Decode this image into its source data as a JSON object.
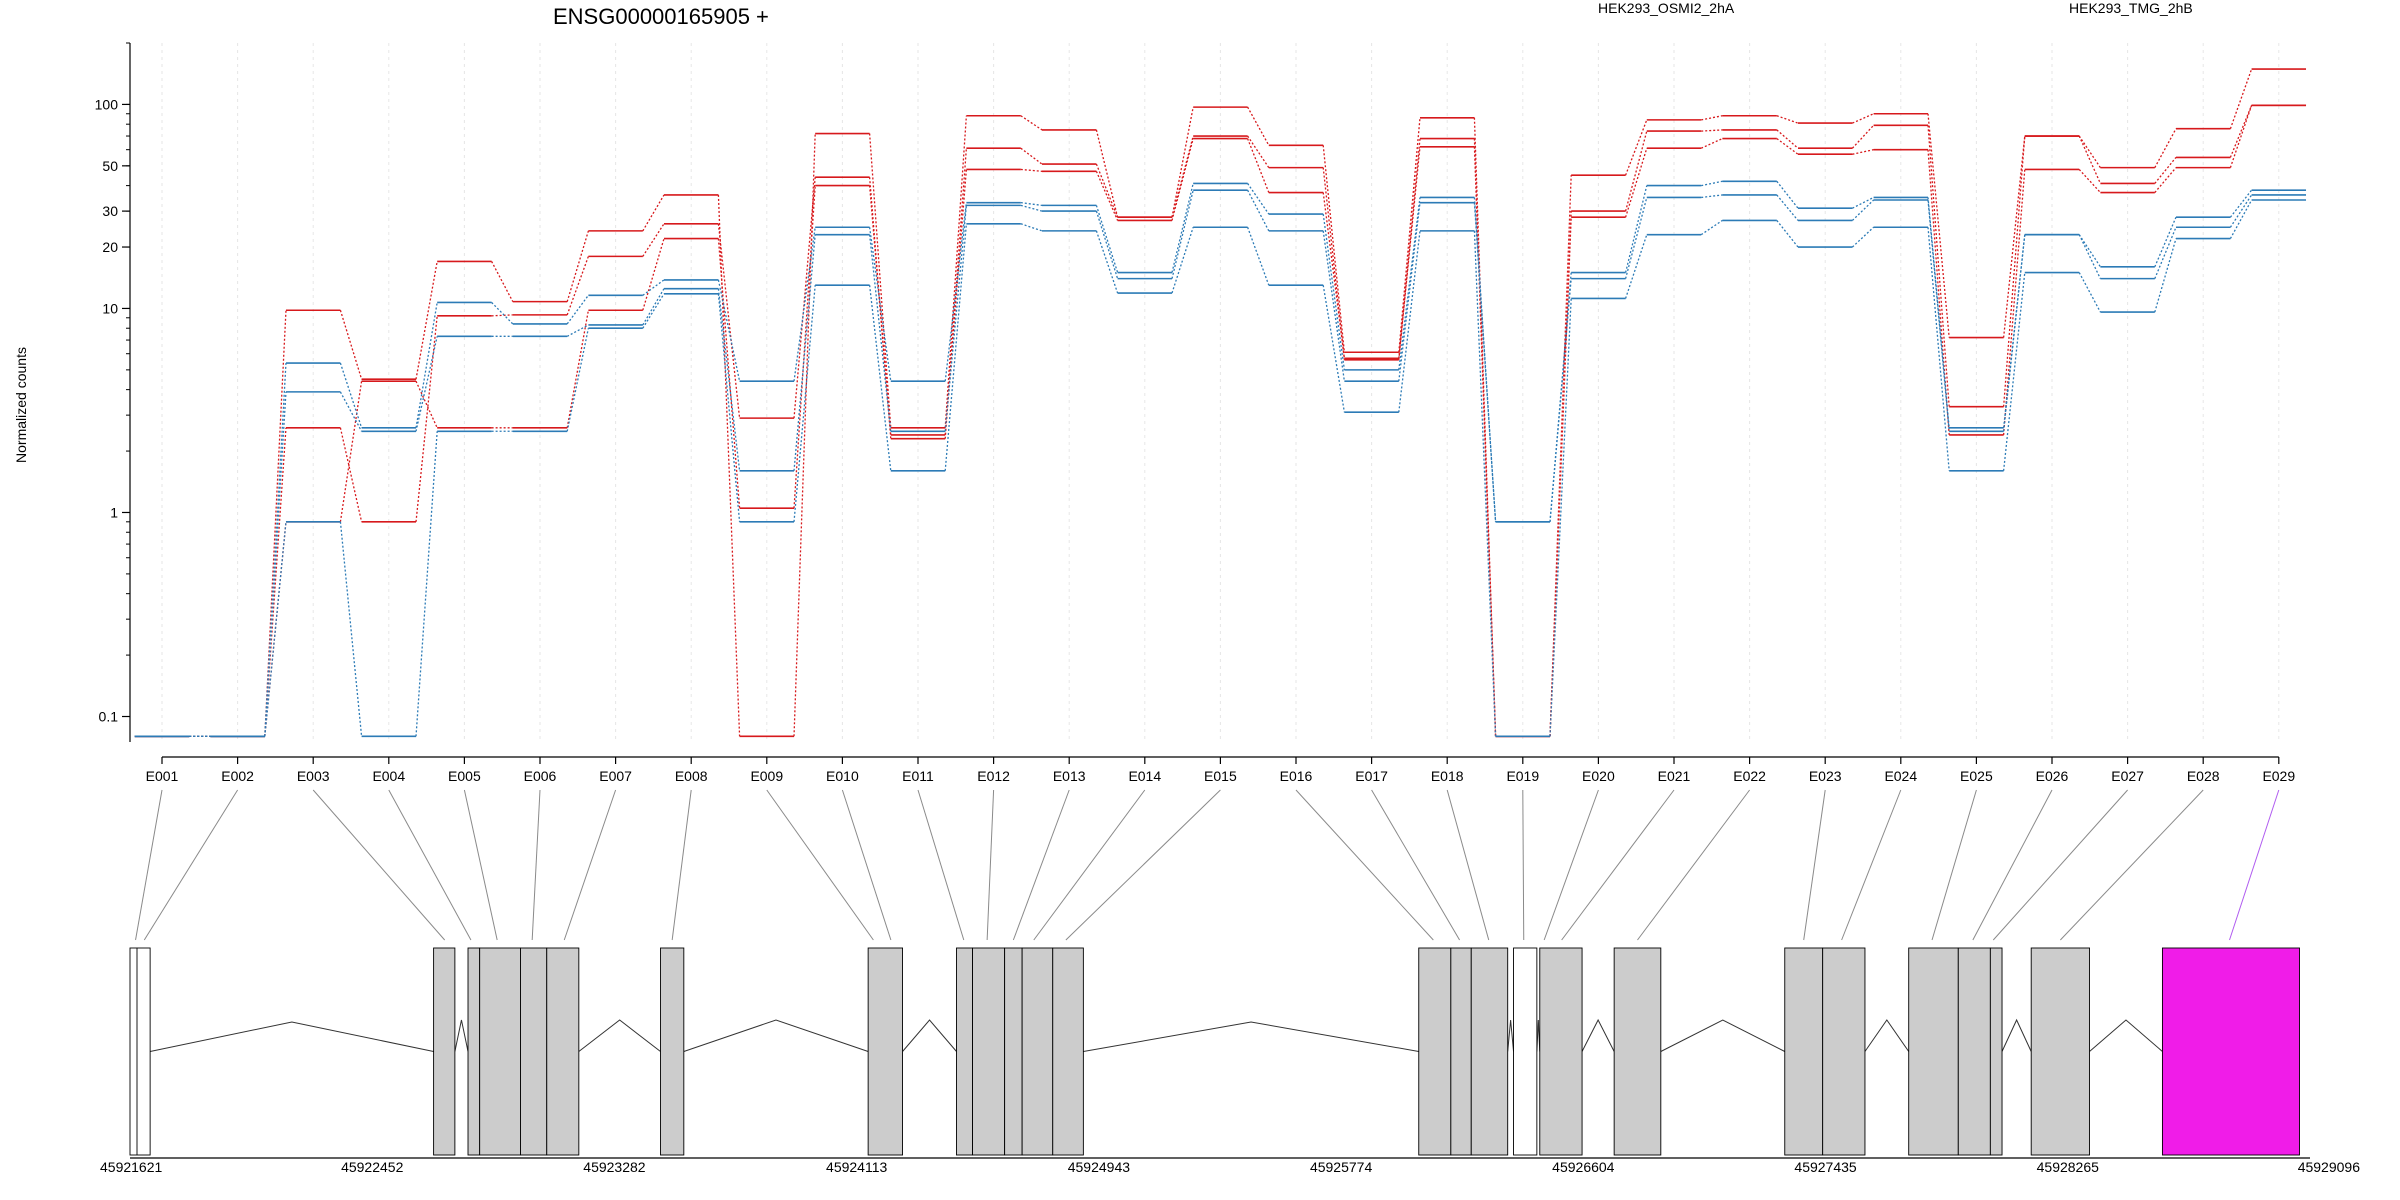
{
  "chart_data": {
    "type": "line",
    "title": "ENSG00000165905 +",
    "ylabel": "Normalized counts",
    "xlabel": "",
    "yscale": "log",
    "ylim": [
      0.075,
      200
    ],
    "y_ticks": [
      0.1,
      1,
      10,
      20,
      30,
      50,
      100
    ],
    "y_tick_labels": [
      "0.1",
      "1",
      "10",
      "20",
      "30",
      "50",
      "100"
    ],
    "grid": "vertical-dashed",
    "categories": [
      "E001",
      "E002",
      "E003",
      "E004",
      "E005",
      "E006",
      "E007",
      "E008",
      "E009",
      "E010",
      "E011",
      "E012",
      "E013",
      "E014",
      "E015",
      "E016",
      "E017",
      "E018",
      "E019",
      "E020",
      "E021",
      "E022",
      "E023",
      "E024",
      "E025",
      "E026",
      "E027",
      "E028",
      "E029"
    ],
    "legend_items": [
      {
        "label": "HEK293_OSMI2_2hA",
        "color": "#d7191c"
      },
      {
        "label": "HEK293_TMG_2hB",
        "color": "#2c7bb6"
      }
    ],
    "series": [
      {
        "group": "HEK293_OSMI2_2hA",
        "color": "#d7191c",
        "values": [
          0.08,
          0.08,
          9.8,
          4.5,
          17,
          10.8,
          24,
          36,
          0.08,
          72,
          2.6,
          88,
          75,
          28,
          97,
          63,
          6.1,
          86,
          0.08,
          45,
          84,
          88,
          81,
          90,
          7.2,
          70,
          49,
          76,
          149
        ]
      },
      {
        "group": "HEK293_OSMI2_2hA",
        "color": "#d7191c",
        "values": [
          0.08,
          0.08,
          2.6,
          0.9,
          9.2,
          9.3,
          18,
          26,
          2.9,
          44,
          2.3,
          61,
          51,
          28,
          70,
          49,
          5.6,
          68,
          0.08,
          30,
          74,
          75,
          61,
          79,
          3.3,
          70,
          41,
          55,
          99
        ]
      },
      {
        "group": "HEK293_OSMI2_2hA",
        "color": "#d7191c",
        "values": [
          0.08,
          0.08,
          0.9,
          4.4,
          2.6,
          2.6,
          9.8,
          22,
          1.05,
          40,
          2.4,
          48,
          47,
          27,
          68,
          37,
          5.7,
          62,
          0.08,
          28,
          61,
          68,
          57,
          60,
          2.4,
          48,
          37,
          49,
          99
        ]
      },
      {
        "group": "HEK293_TMG_2hB",
        "color": "#2c7bb6",
        "values": [
          0.08,
          0.08,
          5.4,
          2.6,
          10.7,
          8.4,
          11.6,
          13.8,
          4.4,
          25,
          4.4,
          33,
          32,
          15,
          41,
          29,
          5.0,
          35,
          0.9,
          15,
          40,
          42,
          31,
          35,
          2.6,
          23,
          16,
          28,
          38
        ]
      },
      {
        "group": "HEK293_TMG_2hB",
        "color": "#2c7bb6",
        "values": [
          0.08,
          0.08,
          3.9,
          2.5,
          7.3,
          7.3,
          8.3,
          12.5,
          1.6,
          23,
          2.5,
          32,
          30,
          14,
          38,
          24,
          4.4,
          33,
          0.9,
          14,
          35,
          36,
          27,
          34,
          2.5,
          23,
          14,
          25,
          36
        ]
      },
      {
        "group": "HEK293_TMG_2hB",
        "color": "#2c7bb6",
        "values": [
          0.08,
          0.08,
          0.9,
          0.08,
          2.5,
          2.5,
          8.0,
          11.8,
          0.9,
          13,
          1.6,
          26,
          24,
          11.9,
          25,
          13,
          3.1,
          24,
          0.08,
          11.2,
          23,
          27,
          20,
          25,
          1.6,
          15,
          9.6,
          22,
          34
        ]
      }
    ],
    "genome": {
      "start_label": "45921621",
      "end_label": "45929096",
      "start": 45921621,
      "end": 45929096,
      "tick_labels": [
        "45921621",
        "45922452",
        "45923282",
        "45924113",
        "45924943",
        "45925774",
        "45926604",
        "45927435",
        "45928265",
        "45929096"
      ],
      "exon_blocks": [
        {
          "start": 45921621,
          "end": 45921690,
          "fill": "#ffffff"
        },
        {
          "start": 45922662,
          "end": 45922735,
          "fill": "#cccccc"
        },
        {
          "start": 45922780,
          "end": 45922820,
          "fill": "#cccccc"
        },
        {
          "start": 45922820,
          "end": 45922960,
          "fill": "#cccccc"
        },
        {
          "start": 45922960,
          "end": 45923050,
          "fill": "#cccccc"
        },
        {
          "start": 45923050,
          "end": 45923160,
          "fill": "#cccccc"
        },
        {
          "start": 45923440,
          "end": 45923520,
          "fill": "#cccccc"
        },
        {
          "start": 45924152,
          "end": 45924270,
          "fill": "#cccccc"
        },
        {
          "start": 45924455,
          "end": 45924510,
          "fill": "#cccccc"
        },
        {
          "start": 45924510,
          "end": 45924620,
          "fill": "#cccccc"
        },
        {
          "start": 45924620,
          "end": 45924680,
          "fill": "#cccccc"
        },
        {
          "start": 45924680,
          "end": 45924785,
          "fill": "#cccccc"
        },
        {
          "start": 45924785,
          "end": 45924890,
          "fill": "#cccccc"
        },
        {
          "start": 45926040,
          "end": 45926150,
          "fill": "#cccccc"
        },
        {
          "start": 45926150,
          "end": 45926220,
          "fill": "#cccccc"
        },
        {
          "start": 45926220,
          "end": 45926345,
          "fill": "#cccccc"
        },
        {
          "start": 45926365,
          "end": 45926445,
          "fill": "#ffffff"
        },
        {
          "start": 45926455,
          "end": 45926600,
          "fill": "#cccccc"
        },
        {
          "start": 45926710,
          "end": 45926870,
          "fill": "#cccccc"
        },
        {
          "start": 45927295,
          "end": 45927425,
          "fill": "#cccccc"
        },
        {
          "start": 45927425,
          "end": 45927570,
          "fill": "#cccccc"
        },
        {
          "start": 45927720,
          "end": 45927890,
          "fill": "#cccccc"
        },
        {
          "start": 45927890,
          "end": 45928000,
          "fill": "#cccccc"
        },
        {
          "start": 45928000,
          "end": 45928040,
          "fill": "#cccccc"
        },
        {
          "start": 45928140,
          "end": 45928340,
          "fill": "#cccccc"
        },
        {
          "start": 45928590,
          "end": 45929060,
          "fill": "#f01ce8"
        }
      ]
    }
  }
}
